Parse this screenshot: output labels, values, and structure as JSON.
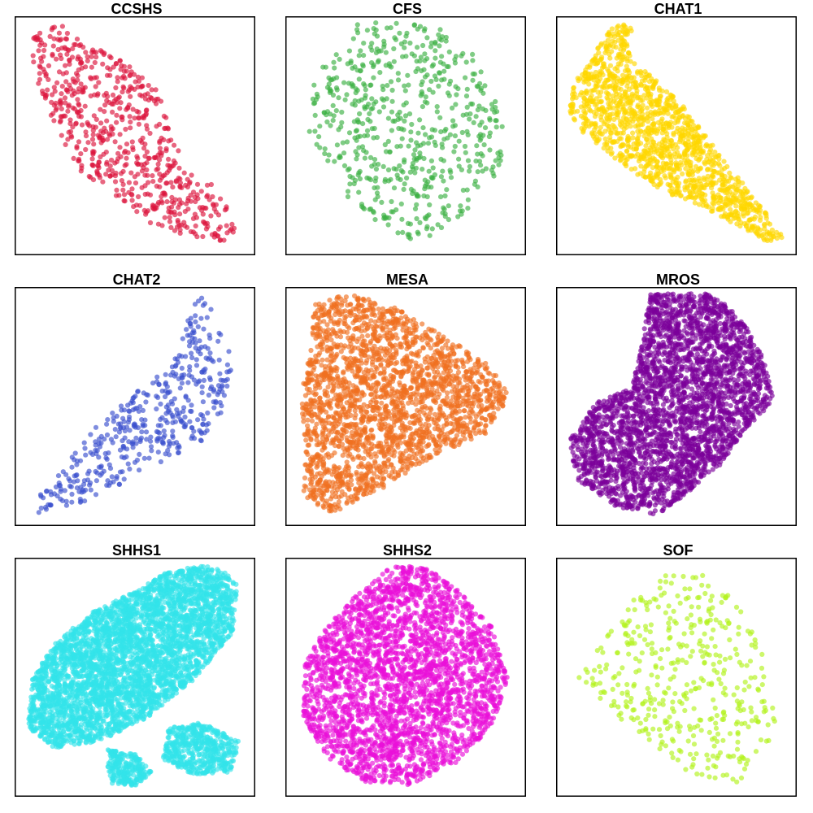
{
  "chart_data": [
    {
      "type": "scatter",
      "title": "CCSHS",
      "color": "#DC143C",
      "points": 650,
      "shape": "ccshs",
      "xlim": [
        0,
        1
      ],
      "ylim": [
        0,
        1
      ],
      "axes": "hidden",
      "grid": false
    },
    {
      "type": "scatter",
      "title": "CFS",
      "color": "#3CB043",
      "points": 600,
      "shape": "cfs",
      "xlim": [
        0,
        1
      ],
      "ylim": [
        0,
        1
      ],
      "axes": "hidden",
      "grid": false
    },
    {
      "type": "scatter",
      "title": "CHAT1",
      "color": "#FFD700",
      "points": 1400,
      "shape": "chat1",
      "xlim": [
        0,
        1
      ],
      "ylim": [
        0,
        1
      ],
      "axes": "hidden",
      "grid": false
    },
    {
      "type": "scatter",
      "title": "CHAT2",
      "color": "#3B50CE",
      "points": 450,
      "shape": "chat2",
      "xlim": [
        0,
        1
      ],
      "ylim": [
        0,
        1
      ],
      "axes": "hidden",
      "grid": false
    },
    {
      "type": "scatter",
      "title": "MESA",
      "color": "#F07020",
      "points": 2300,
      "shape": "mesa",
      "xlim": [
        0,
        1
      ],
      "ylim": [
        0,
        1
      ],
      "axes": "hidden",
      "grid": false
    },
    {
      "type": "scatter",
      "title": "MROS",
      "color": "#7B0099",
      "points": 3000,
      "shape": "mros",
      "xlim": [
        0,
        1
      ],
      "ylim": [
        0,
        1
      ],
      "axes": "hidden",
      "grid": false
    },
    {
      "type": "scatter",
      "title": "SHHS1",
      "color": "#33E3EA",
      "points": 4500,
      "shape": "shhs1",
      "xlim": [
        0,
        1
      ],
      "ylim": [
        0,
        1
      ],
      "axes": "hidden",
      "grid": false
    },
    {
      "type": "scatter",
      "title": "SHHS2",
      "color": "#E910D8",
      "points": 2800,
      "shape": "shhs2",
      "xlim": [
        0,
        1
      ],
      "ylim": [
        0,
        1
      ],
      "axes": "hidden",
      "grid": false
    },
    {
      "type": "scatter",
      "title": "SOF",
      "color": "#B2F21C",
      "points": 430,
      "shape": "sof",
      "xlim": [
        0,
        1
      ],
      "ylim": [
        0,
        1
      ],
      "axes": "hidden",
      "grid": false
    }
  ]
}
